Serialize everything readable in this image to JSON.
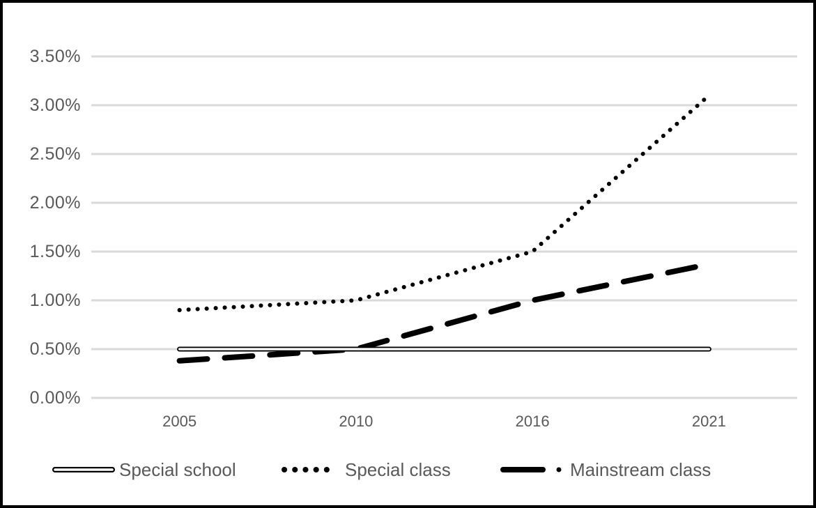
{
  "chart_data": {
    "type": "line",
    "title": "",
    "x_axis_type": "category",
    "categories": [
      "2005",
      "2010",
      "2016",
      "2021"
    ],
    "series": [
      {
        "name": "Special school",
        "style": "double-solid",
        "values_pct": [
          0.5,
          0.5,
          0.5,
          0.5
        ]
      },
      {
        "name": "Special class",
        "style": "round-dotted",
        "values_pct": [
          0.9,
          1.0,
          1.5,
          3.1
        ]
      },
      {
        "name": "Mainstream class",
        "style": "long-dash",
        "values_pct": [
          0.38,
          0.5,
          1.0,
          1.37
        ]
      }
    ],
    "y_ticks": [
      "3.50%",
      "3.00%",
      "2.50%",
      "2.00%",
      "1.50%",
      "1.00%",
      "0.50%",
      "0.00%"
    ],
    "ylim_pct": [
      0,
      3.5
    ],
    "y_tick_step_pct": 0.5,
    "xlabel": "",
    "ylabel": "",
    "grid": "horizontal",
    "legend_position": "bottom",
    "colors": {
      "series": "#000000",
      "axis_text": "#595959",
      "gridline": "#d9d9d9",
      "background": "#ffffff",
      "border": "#000000"
    }
  }
}
